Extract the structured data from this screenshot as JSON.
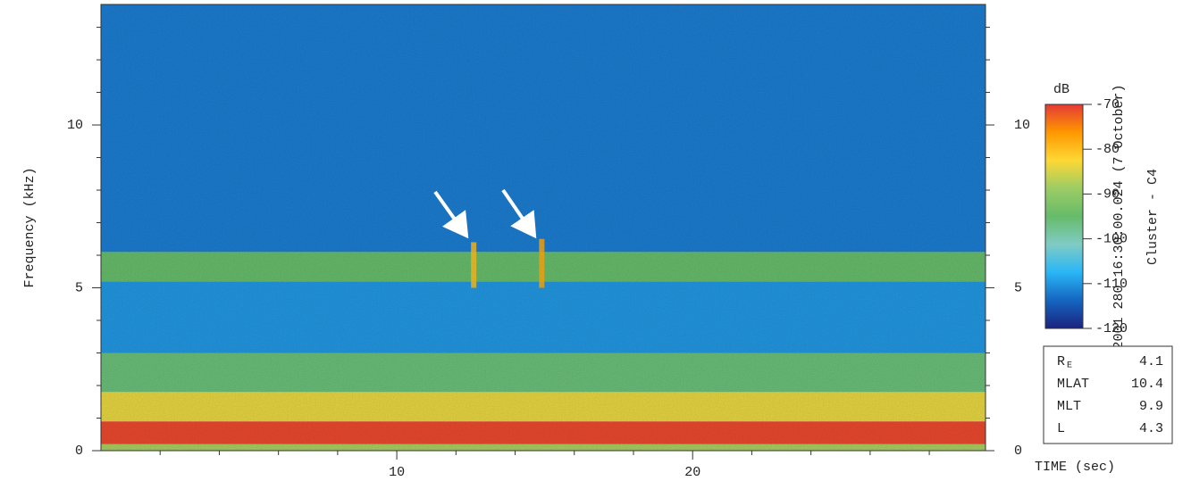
{
  "chart_data": {
    "type": "spectrogram",
    "y_label": "Frequency (kHz)",
    "x_label": "TIME (sec)",
    "xlim": [
      0,
      29.9
    ],
    "xticks": [
      10,
      20
    ],
    "x_minor_ticks": [
      2,
      4,
      6,
      8,
      12,
      14,
      16,
      18,
      22,
      24,
      26,
      28
    ],
    "ylim": [
      0,
      13.7
    ],
    "yticks": [
      0,
      5,
      10
    ],
    "y_minor_ticks": [
      1,
      2,
      3,
      4,
      6,
      7,
      8,
      9,
      11,
      12,
      13
    ],
    "bands": [
      {
        "fmin": 0,
        "fmax": 0.2,
        "db": -88
      },
      {
        "fmin": 0.2,
        "fmax": 0.9,
        "db": -71
      },
      {
        "fmin": 0.9,
        "fmax": 1.8,
        "db": -84
      },
      {
        "fmin": 1.8,
        "fmax": 3.0,
        "db": -96
      },
      {
        "fmin": 3.0,
        "fmax": 5.2,
        "db": -110
      },
      {
        "fmin": 5.2,
        "fmax": 6.1,
        "db": -95
      },
      {
        "fmin": 6.1,
        "fmax": 13.7,
        "db": -112
      }
    ],
    "bursts": [
      {
        "time": 12.6,
        "fmin": 5.0,
        "fmax": 6.4,
        "db": -80
      },
      {
        "time": 14.9,
        "fmin": 5.0,
        "fmax": 6.5,
        "db": -78
      }
    ],
    "colorbar": {
      "label": "dB",
      "lim": [
        -120,
        -70
      ],
      "ticks": [
        -70,
        -80,
        -90,
        -100,
        -110,
        -120
      ],
      "colors": [
        "#1a237e",
        "#1565c0",
        "#29b6f6",
        "#80cbc4",
        "#66bb6a",
        "#9ccc65",
        "#fdd835",
        "#ff9800",
        "#e53935"
      ]
    },
    "side_text": [
      "2001 280 16:30:00.024 (7 October)",
      "Cluster - C4"
    ],
    "info_box": [
      {
        "label": "R",
        "sub": "E",
        "value": 4.1
      },
      {
        "label": "MLAT",
        "value": 10.4
      },
      {
        "label": "MLT",
        "value": 9.9
      },
      {
        "label": "L",
        "value": 4.3
      }
    ]
  }
}
